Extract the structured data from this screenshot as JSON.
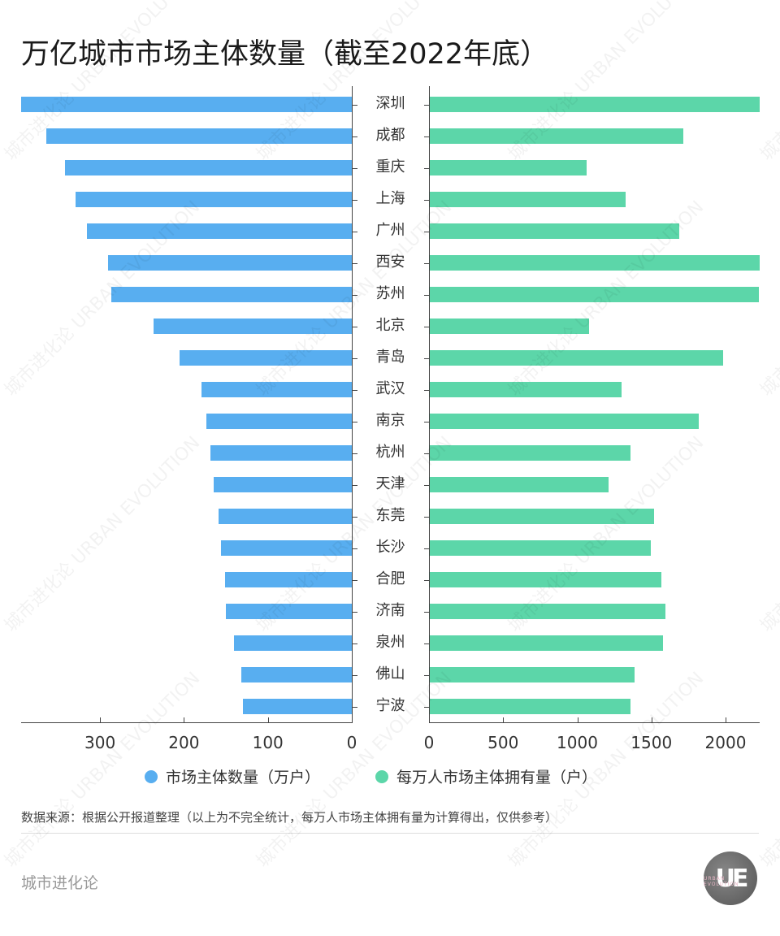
{
  "title": "万亿城市市场主体数量（截至2022年底）",
  "legend": {
    "left": {
      "label": "市场主体数量（万户）",
      "color": "#58aef0"
    },
    "right": {
      "label": "每万人市场主体拥有量（户）",
      "color": "#5cd6a9"
    }
  },
  "source": "数据来源：根据公开报道整理（以上为不完全统计，每万人市场主体拥有量为计算得出，仅供参考）",
  "brand": "城市进化论",
  "logo": {
    "text": "UE",
    "subtext": "URBAN EVOLUTION"
  },
  "watermark": "城市进化论 URBAN EVOLUTION",
  "chart_data": {
    "type": "bar",
    "orientation": "horizontal-butterfly",
    "title": "万亿城市市场主体数量（截至2022年底）",
    "categories": [
      "深圳",
      "成都",
      "重庆",
      "上海",
      "广州",
      "西安",
      "苏州",
      "北京",
      "青岛",
      "武汉",
      "南京",
      "杭州",
      "天津",
      "东莞",
      "长沙",
      "合肥",
      "济南",
      "泉州",
      "佛山",
      "宁波"
    ],
    "series": [
      {
        "name": "市场主体数量（万户）",
        "side": "left",
        "color": "#58aef0",
        "values": [
          394,
          364,
          342,
          329,
          316,
          290,
          287,
          236,
          205,
          179,
          173,
          168,
          165,
          159,
          156,
          151,
          150,
          140,
          132,
          130
        ]
      },
      {
        "name": "每万人市场主体拥有量（户）",
        "side": "right",
        "color": "#5cd6a9",
        "values": [
          2225,
          1710,
          1058,
          1321,
          1682,
          2225,
          2219,
          1074,
          1978,
          1293,
          1814,
          1353,
          1205,
          1512,
          1490,
          1562,
          1589,
          1573,
          1381,
          1353
        ]
      }
    ],
    "left_axis": {
      "ticks": [
        300,
        200,
        100,
        0
      ],
      "range": [
        0,
        395
      ],
      "reversed": true
    },
    "right_axis": {
      "ticks": [
        0,
        500,
        1000,
        1500,
        2000
      ],
      "range": [
        0,
        2230
      ]
    },
    "grid": false,
    "legend_position": "bottom"
  }
}
